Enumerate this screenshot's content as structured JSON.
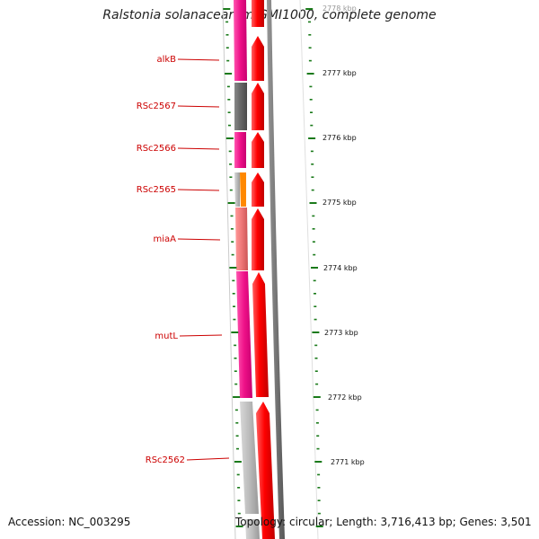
{
  "title": "Ralstonia solanacearum GMI1000, complete genome",
  "accession": "Accession: NC_003295",
  "topology": "Topology: circular; Length: 3,716,413 bp; Genes: 3,501",
  "colors": {
    "cds": "#ff0000",
    "magenta": "#ee1188",
    "gray": "#666666",
    "lightgray": "#bbbbbb",
    "salmon": "#ee7777",
    "orange": "#ff8800",
    "tick": "#1a7a1a",
    "label": "#cc0000"
  },
  "genes": [
    {
      "name": "alkB",
      "color": "magenta"
    },
    {
      "name": "RSc2567",
      "color": "gray"
    },
    {
      "name": "RSc2566",
      "color": "magenta"
    },
    {
      "name": "RSc2565",
      "color": "lightgray"
    },
    {
      "name": "miaA",
      "color": "salmon"
    },
    {
      "name": "mutL",
      "color": "magenta"
    },
    {
      "name": "RSc2562",
      "color": "lightgray"
    }
  ],
  "kbp_labels": [
    "2778 kbp",
    "2777 kbp",
    "2776 kbp",
    "2775 kbp",
    "2774 kbp",
    "2773 kbp",
    "2772 kbp",
    "2771 kbp"
  ]
}
